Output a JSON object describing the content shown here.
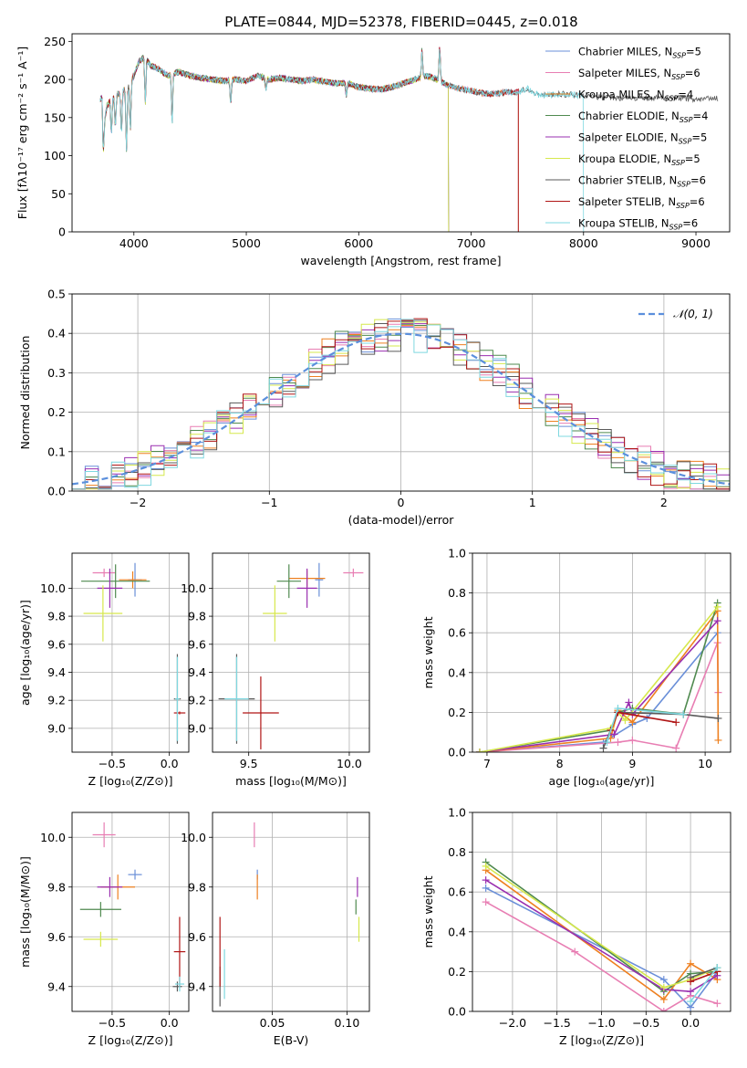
{
  "figure_title": "PLATE=0844, MJD=52378, FIBERID=0445, z=0.018",
  "colors": {
    "Chabrier MILES": "#6a8fd8",
    "Salpeter MILES": "#e87eb3",
    "Kroupa MILES": "#ee8020",
    "Chabrier ELODIE": "#4f8a4f",
    "Salpeter ELODIE": "#9a2fb0",
    "Kroupa ELODIE": "#d6e84c",
    "Chabrier STELIB": "#5a5a5a",
    "Salpeter STELIB": "#b01515",
    "Kroupa STELIB": "#7fd8e0"
  },
  "chart_data": [
    {
      "id": "spectrum",
      "type": "line",
      "title": "PLATE=0844, MJD=52378, FIBERID=0445, z=0.018",
      "xlabel": "wavelength [Angstrom, rest frame]",
      "ylabel": "Flux [fλ10⁻¹⁷ erg cm⁻² s⁻¹ A⁻¹]",
      "xlim": [
        3450,
        9300
      ],
      "ylim": [
        0,
        260
      ],
      "xticks": [
        4000,
        5000,
        6000,
        7000,
        8000,
        9000
      ],
      "yticks": [
        0,
        50,
        100,
        150,
        200,
        250
      ],
      "legend_position": "top-right",
      "legend": [
        {
          "prefix": "Chabrier MILES, N",
          "sub": "SSP",
          "suffix": "=5"
        },
        {
          "prefix": "Salpeter MILES, N",
          "sub": "SSP",
          "suffix": "=6"
        },
        {
          "prefix": "Kroupa MILES, N",
          "sub": "SSP",
          "suffix": "=4"
        },
        {
          "prefix": "Chabrier ELODIE, N",
          "sub": "SSP",
          "suffix": "=4"
        },
        {
          "prefix": "Salpeter ELODIE, N",
          "sub": "SSP",
          "suffix": "=5"
        },
        {
          "prefix": "Kroupa ELODIE, N",
          "sub": "SSP",
          "suffix": "=5"
        },
        {
          "prefix": "Chabrier STELIB, N",
          "sub": "SSP",
          "suffix": "=6"
        },
        {
          "prefix": "Salpeter STELIB, N",
          "sub": "SSP",
          "suffix": "=6"
        },
        {
          "prefix": "Kroupa STELIB, N",
          "sub": "SSP",
          "suffix": "=6"
        }
      ],
      "continuum": [
        [
          3720,
          130
        ],
        [
          3760,
          165
        ],
        [
          3800,
          175
        ],
        [
          3850,
          180
        ],
        [
          3900,
          185
        ],
        [
          3950,
          190
        ],
        [
          4000,
          205
        ],
        [
          4050,
          225
        ],
        [
          4100,
          230
        ],
        [
          4150,
          218
        ],
        [
          4200,
          215
        ],
        [
          4300,
          205
        ],
        [
          4400,
          210
        ],
        [
          4500,
          205
        ],
        [
          4600,
          202
        ],
        [
          4700,
          200
        ],
        [
          4800,
          198
        ],
        [
          4900,
          200
        ],
        [
          5000,
          198
        ],
        [
          5100,
          205
        ],
        [
          5200,
          200
        ],
        [
          5300,
          202
        ],
        [
          5400,
          200
        ],
        [
          5500,
          198
        ],
        [
          5600,
          200
        ],
        [
          5700,
          197
        ],
        [
          5800,
          195
        ],
        [
          5900,
          195
        ],
        [
          6000,
          190
        ],
        [
          6100,
          188
        ],
        [
          6200,
          187
        ],
        [
          6300,
          190
        ],
        [
          6400,
          195
        ],
        [
          6500,
          200
        ],
        [
          6600,
          205
        ],
        [
          6700,
          200
        ],
        [
          6800,
          192
        ],
        [
          6900,
          188
        ],
        [
          7000,
          185
        ],
        [
          7100,
          182
        ],
        [
          7200,
          181
        ],
        [
          7300,
          183
        ],
        [
          7400,
          183
        ],
        [
          7500,
          188
        ],
        [
          7600,
          180
        ],
        [
          7700,
          180
        ],
        [
          7800,
          181
        ],
        [
          7900,
          180
        ],
        [
          8000,
          178
        ],
        [
          8100,
          178
        ],
        [
          8200,
          176
        ],
        [
          8300,
          176
        ],
        [
          8400,
          175
        ],
        [
          8500,
          176
        ],
        [
          8600,
          176
        ],
        [
          8700,
          175
        ],
        [
          8800,
          176
        ],
        [
          8900,
          175
        ],
        [
          9000,
          174
        ],
        [
          9100,
          175
        ],
        [
          9200,
          175
        ]
      ],
      "features": [
        {
          "x": 3730,
          "depth": 30
        },
        {
          "x": 3800,
          "depth": 45
        },
        {
          "x": 3835,
          "depth": 40
        },
        {
          "x": 3889,
          "depth": 55
        },
        {
          "x": 3934,
          "depth": 80
        },
        {
          "x": 3969,
          "depth": 60
        },
        {
          "x": 4102,
          "depth": 60
        },
        {
          "x": 4340,
          "depth": 65
        },
        {
          "x": 4861,
          "depth": 30
        },
        {
          "x": 5175,
          "depth": 15
        },
        {
          "x": 5890,
          "depth": 15
        },
        {
          "x": 6563,
          "depth": -35
        },
        {
          "x": 6720,
          "depth": -45
        }
      ],
      "series_extents": {
        "Chabrier MILES": [
          3700,
          7420
        ],
        "Salpeter MILES": [
          3700,
          7420
        ],
        "Kroupa MILES": [
          3700,
          7420
        ],
        "Chabrier ELODIE": [
          3700,
          6800
        ],
        "Salpeter ELODIE": [
          3700,
          6800
        ],
        "Kroupa ELODIE": [
          3700,
          6800
        ],
        "Chabrier STELIB": [
          3700,
          9200
        ],
        "Salpeter STELIB": [
          3700,
          7420
        ],
        "Kroupa STELIB": [
          3700,
          8000
        ]
      }
    },
    {
      "id": "residuals",
      "type": "histogram",
      "xlabel": "(data-model)/error",
      "ylabel": "Normed distribution",
      "xlim": [
        -2.5,
        2.5
      ],
      "ylim": [
        0,
        0.5
      ],
      "xticks": [
        -2,
        -1,
        0,
        1,
        2
      ],
      "yticks": [
        0.0,
        0.1,
        0.2,
        0.3,
        0.4,
        0.5
      ],
      "bin_width": 0.1,
      "legend_position": "top-right",
      "normal_curve": {
        "label": "𝒩(0, 1)",
        "mean": 0,
        "sigma": 1,
        "color": "#5b8fdc"
      }
    },
    {
      "id": "age-vs-Z",
      "type": "scatter",
      "xlabel": "Z [log₁₀(Z/Z⊙)]",
      "ylabel": "age  [log₁₀(age/yr)]",
      "xlim": [
        -0.85,
        0.17
      ],
      "ylim": [
        8.83,
        10.25
      ],
      "xticks": [
        -0.5,
        0.0
      ],
      "yticks": [
        9.0,
        9.2,
        9.4,
        9.6,
        9.8,
        10.0
      ],
      "points": [
        {
          "series": "Chabrier MILES",
          "x": -0.3,
          "y": 10.06,
          "xerr": 0.06,
          "yerr": 0.12
        },
        {
          "series": "Salpeter MILES",
          "x": -0.57,
          "y": 10.11,
          "xerr": 0.1,
          "yerr": 0.03
        },
        {
          "series": "Kroupa MILES",
          "x": -0.32,
          "y": 10.06,
          "xerr": 0.12,
          "yerr": 0.06
        },
        {
          "series": "Chabrier ELODIE",
          "x": -0.47,
          "y": 10.05,
          "xerr": 0.3,
          "yerr": 0.12
        },
        {
          "series": "Salpeter ELODIE",
          "x": -0.52,
          "y": 10.0,
          "xerr": 0.11,
          "yerr": 0.14
        },
        {
          "series": "Kroupa ELODIE",
          "x": -0.58,
          "y": 9.82,
          "xerr": 0.17,
          "yerr": 0.2
        },
        {
          "series": "Chabrier STELIB",
          "x": 0.07,
          "y": 9.21,
          "xerr": 0.03,
          "yerr": 0.32
        },
        {
          "series": "Salpeter STELIB",
          "x": 0.09,
          "y": 9.11,
          "xerr": 0.05,
          "yerr": 0.01
        },
        {
          "series": "Kroupa STELIB",
          "x": 0.07,
          "y": 9.21,
          "xerr": 0.02,
          "yerr": 0.3
        }
      ]
    },
    {
      "id": "age-vs-mass",
      "type": "scatter",
      "xlabel": "mass [log₁₀(M/M⊙)]",
      "ylabel": "",
      "xlim": [
        9.32,
        10.1
      ],
      "ylim": [
        8.83,
        10.25
      ],
      "xticks": [
        9.5,
        10.0
      ],
      "yticks": [
        9.0,
        9.2,
        9.4,
        9.6,
        9.8,
        10.0
      ],
      "points": [
        {
          "series": "Chabrier MILES",
          "x": 9.85,
          "y": 10.06,
          "xerr": 0.02,
          "yerr": 0.12
        },
        {
          "series": "Salpeter MILES",
          "x": 10.02,
          "y": 10.11,
          "xerr": 0.05,
          "yerr": 0.03
        },
        {
          "series": "Kroupa MILES",
          "x": 9.79,
          "y": 10.07,
          "xerr": 0.09,
          "yerr": 0.06
        },
        {
          "series": "Chabrier ELODIE",
          "x": 9.7,
          "y": 10.05,
          "xerr": 0.06,
          "yerr": 0.12
        },
        {
          "series": "Salpeter ELODIE",
          "x": 9.79,
          "y": 10.0,
          "xerr": 0.05,
          "yerr": 0.14
        },
        {
          "series": "Kroupa ELODIE",
          "x": 9.63,
          "y": 9.82,
          "xerr": 0.06,
          "yerr": 0.2
        },
        {
          "series": "Chabrier STELIB",
          "x": 9.44,
          "y": 9.21,
          "xerr": 0.09,
          "yerr": 0.32
        },
        {
          "series": "Salpeter STELIB",
          "x": 9.56,
          "y": 9.11,
          "xerr": 0.09,
          "yerr": 0.26
        },
        {
          "series": "Kroupa STELIB",
          "x": 9.44,
          "y": 9.21,
          "xerr": 0.06,
          "yerr": 0.3
        }
      ]
    },
    {
      "id": "mass-weight-vs-age",
      "type": "line",
      "xlabel": "age  [log₁₀(age/yr)]",
      "ylabel": "mass weight",
      "xlim": [
        6.8,
        10.35
      ],
      "ylim": [
        0,
        1.0
      ],
      "xticks": [
        7,
        8,
        9,
        10
      ],
      "yticks": [
        0.0,
        0.2,
        0.4,
        0.6,
        0.8,
        1.0
      ],
      "series": [
        {
          "name": "Chabrier MILES",
          "x": [
            6.9,
            8.6,
            9.0,
            9.2,
            10.17
          ],
          "y": [
            0.0,
            0.05,
            0.14,
            0.17,
            0.6
          ]
        },
        {
          "name": "Salpeter MILES",
          "x": [
            6.9,
            8.8,
            9.0,
            9.6,
            10.17,
            10.18
          ],
          "y": [
            0.0,
            0.05,
            0.06,
            0.02,
            0.55,
            0.3
          ]
        },
        {
          "name": "Kroupa MILES",
          "x": [
            6.9,
            8.7,
            8.8,
            9.0,
            10.17,
            10.18
          ],
          "y": [
            0.0,
            0.07,
            0.21,
            0.15,
            0.71,
            0.06
          ]
        },
        {
          "name": "Chabrier ELODIE",
          "x": [
            6.9,
            8.7,
            8.8,
            9.0,
            9.7,
            10.17
          ],
          "y": [
            0.0,
            0.11,
            0.2,
            0.22,
            0.19,
            0.75
          ]
        },
        {
          "name": "Salpeter ELODIE",
          "x": [
            6.9,
            8.75,
            8.95,
            9.0,
            10.17
          ],
          "y": [
            0.0,
            0.09,
            0.25,
            0.19,
            0.66
          ]
        },
        {
          "name": "Kroupa ELODIE",
          "x": [
            6.9,
            8.7,
            8.8,
            8.9,
            10.17
          ],
          "y": [
            0.0,
            0.12,
            0.2,
            0.16,
            0.73
          ]
        },
        {
          "name": "Chabrier STELIB",
          "x": [
            8.6,
            8.8,
            9.7,
            10.18
          ],
          "y": [
            0.02,
            0.2,
            0.19,
            0.17
          ]
        },
        {
          "name": "Salpeter STELIB",
          "x": [
            8.7,
            8.8,
            9.6
          ],
          "y": [
            0.11,
            0.2,
            0.15
          ]
        },
        {
          "name": "Kroupa STELIB",
          "x": [
            8.65,
            8.8,
            9.7
          ],
          "y": [
            0.05,
            0.22,
            0.19
          ]
        }
      ]
    },
    {
      "id": "mass-vs-Z",
      "type": "scatter",
      "xlabel": "Z [log₁₀(Z/Z⊙)]",
      "ylabel": "mass [log₁₀(M/M⊙)]",
      "xlim": [
        -0.85,
        0.17
      ],
      "ylim": [
        9.3,
        10.1
      ],
      "xticks": [
        -0.5,
        0.0
      ],
      "yticks": [
        9.4,
        9.6,
        9.8,
        10.0
      ],
      "points": [
        {
          "series": "Chabrier MILES",
          "x": -0.3,
          "y": 9.85,
          "xerr": 0.06,
          "yerr": 0.02
        },
        {
          "series": "Salpeter MILES",
          "x": -0.57,
          "y": 10.01,
          "xerr": 0.1,
          "yerr": 0.05
        },
        {
          "series": "Kroupa MILES",
          "x": -0.45,
          "y": 9.8,
          "xerr": 0.15,
          "yerr": 0.05
        },
        {
          "series": "Chabrier ELODIE",
          "x": -0.6,
          "y": 9.71,
          "xerr": 0.18,
          "yerr": 0.03
        },
        {
          "series": "Salpeter ELODIE",
          "x": -0.52,
          "y": 9.8,
          "xerr": 0.11,
          "yerr": 0.04
        },
        {
          "series": "Kroupa ELODIE",
          "x": -0.6,
          "y": 9.59,
          "xerr": 0.15,
          "yerr": 0.03
        },
        {
          "series": "Chabrier STELIB",
          "x": 0.07,
          "y": 9.4,
          "xerr": 0.04,
          "yerr": 0.02
        },
        {
          "series": "Salpeter STELIB",
          "x": 0.09,
          "y": 9.54,
          "xerr": 0.05,
          "yerr": 0.14
        },
        {
          "series": "Kroupa STELIB",
          "x": 0.09,
          "y": 9.41,
          "xerr": 0.04,
          "yerr": 0.03
        }
      ]
    },
    {
      "id": "mass-vs-ebv",
      "type": "scatter",
      "xlabel": "E(B-V)",
      "ylabel": "",
      "xlim": [
        0.01,
        0.115
      ],
      "ylim": [
        9.3,
        10.1
      ],
      "xticks": [
        0.05,
        0.1
      ],
      "yticks": [
        9.4,
        9.6,
        9.8,
        10.0
      ],
      "points": [
        {
          "series": "Chabrier MILES",
          "x": 0.04,
          "y": 9.85,
          "xerr": 0.0,
          "yerr": 0.02
        },
        {
          "series": "Salpeter MILES",
          "x": 0.038,
          "y": 10.01,
          "xerr": 0.0,
          "yerr": 0.05
        },
        {
          "series": "Kroupa MILES",
          "x": 0.04,
          "y": 9.8,
          "xerr": 0.0,
          "yerr": 0.05
        },
        {
          "series": "Chabrier ELODIE",
          "x": 0.106,
          "y": 9.72,
          "xerr": 0.0,
          "yerr": 0.03
        },
        {
          "series": "Salpeter ELODIE",
          "x": 0.107,
          "y": 9.8,
          "xerr": 0.0,
          "yerr": 0.04
        },
        {
          "series": "Kroupa ELODIE",
          "x": 0.108,
          "y": 9.63,
          "xerr": 0.0,
          "yerr": 0.05
        },
        {
          "series": "Chabrier STELIB",
          "x": 0.015,
          "y": 9.4,
          "xerr": 0.0,
          "yerr": 0.08
        },
        {
          "series": "Salpeter STELIB",
          "x": 0.015,
          "y": 9.54,
          "xerr": 0.0,
          "yerr": 0.14
        },
        {
          "series": "Kroupa STELIB",
          "x": 0.018,
          "y": 9.45,
          "xerr": 0.0,
          "yerr": 0.1
        }
      ]
    },
    {
      "id": "mass-weight-vs-Z",
      "type": "line",
      "xlabel": "Z [log₁₀(Z/Z⊙)]",
      "ylabel": "mass weight",
      "xlim": [
        -2.45,
        0.45
      ],
      "ylim": [
        0,
        1.0
      ],
      "xticks": [
        -2.0,
        -1.5,
        -1.0,
        -0.5,
        0.0
      ],
      "yticks": [
        0.0,
        0.2,
        0.4,
        0.6,
        0.8,
        1.0
      ],
      "series": [
        {
          "name": "Chabrier MILES",
          "x": [
            -2.3,
            -0.3,
            0.0,
            0.3
          ],
          "y": [
            0.62,
            0.16,
            0.02,
            0.2
          ]
        },
        {
          "name": "Salpeter MILES",
          "x": [
            -2.3,
            -1.3,
            -0.3,
            0.0,
            0.3
          ],
          "y": [
            0.55,
            0.3,
            0.0,
            0.08,
            0.04
          ]
        },
        {
          "name": "Kroupa MILES",
          "x": [
            -2.3,
            -0.3,
            0.0,
            0.3
          ],
          "y": [
            0.71,
            0.06,
            0.24,
            0.16
          ]
        },
        {
          "name": "Chabrier ELODIE",
          "x": [
            -2.3,
            -0.3,
            0.0,
            0.3
          ],
          "y": [
            0.75,
            0.1,
            0.19,
            0.2
          ]
        },
        {
          "name": "Salpeter ELODIE",
          "x": [
            -2.3,
            -0.3,
            0.0,
            0.3
          ],
          "y": [
            0.66,
            0.11,
            0.1,
            0.18
          ]
        },
        {
          "name": "Kroupa ELODIE",
          "x": [
            -2.3,
            -0.3,
            0.0,
            0.3
          ],
          "y": [
            0.73,
            0.12,
            0.16,
            0.22
          ]
        },
        {
          "name": "Chabrier STELIB",
          "x": [
            0.0,
            0.3
          ],
          "y": [
            0.17,
            0.22
          ]
        },
        {
          "name": "Salpeter STELIB",
          "x": [
            0.0,
            0.3
          ],
          "y": [
            0.15,
            0.2
          ]
        },
        {
          "name": "Kroupa STELIB",
          "x": [
            0.0,
            0.3
          ],
          "y": [
            0.05,
            0.22
          ]
        }
      ]
    }
  ]
}
